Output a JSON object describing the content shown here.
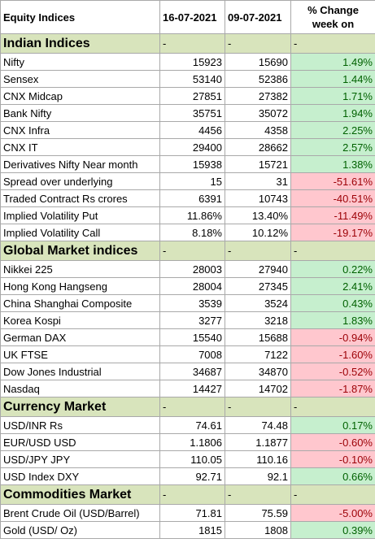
{
  "header": {
    "label": "Equity Indices",
    "date1": "16-07-2021",
    "date2": "09-07-2021",
    "change_line1": "% Change",
    "change_line2": "week on"
  },
  "colors": {
    "section_bg": "#d8e4bc",
    "positive_bg": "#c6efce",
    "positive_text": "#006100",
    "negative_bg": "#ffc7ce",
    "negative_text": "#9c0006"
  },
  "sections": [
    {
      "title": "Indian Indices",
      "d1": "-",
      "d2": "-",
      "d3": "-",
      "rows": [
        {
          "name": "Nifty",
          "v1": "15923",
          "v2": "15690",
          "chg": "1.49%",
          "sign": "pos"
        },
        {
          "name": "Sensex",
          "v1": "53140",
          "v2": "52386",
          "chg": "1.44%",
          "sign": "pos"
        },
        {
          "name": "CNX Midcap",
          "v1": "27851",
          "v2": "27382",
          "chg": "1.71%",
          "sign": "pos"
        },
        {
          "name": "Bank Nifty",
          "v1": "35751",
          "v2": "35072",
          "chg": "1.94%",
          "sign": "pos"
        },
        {
          "name": "CNX Infra",
          "v1": "4456",
          "v2": "4358",
          "chg": "2.25%",
          "sign": "pos"
        },
        {
          "name": "CNX IT",
          "v1": "29400",
          "v2": "28662",
          "chg": "2.57%",
          "sign": "pos"
        },
        {
          "name": "Derivatives Nifty Near month",
          "v1": "15938",
          "v2": "15721",
          "chg": "1.38%",
          "sign": "pos"
        },
        {
          "name": "Spread over underlying",
          "v1": "15",
          "v2": "31",
          "chg": "-51.61%",
          "sign": "neg"
        },
        {
          "name": "Traded Contract Rs crores",
          "v1": "6391",
          "v2": "10743",
          "chg": "-40.51%",
          "sign": "neg"
        },
        {
          "name": "Implied Volatility Put",
          "v1": "11.86%",
          "v2": "13.40%",
          "chg": "-11.49%",
          "sign": "neg"
        },
        {
          "name": "Implied Volatility Call",
          "v1": "8.18%",
          "v2": "10.12%",
          "chg": "-19.17%",
          "sign": "neg"
        }
      ]
    },
    {
      "title": "Global Market indices",
      "d1": "-",
      "d2": "-",
      "d3": "-",
      "rows": [
        {
          "name": "Nikkei 225",
          "v1": "28003",
          "v2": "27940",
          "chg": "0.22%",
          "sign": "pos"
        },
        {
          "name": "Hong Kong Hangseng",
          "v1": "28004",
          "v2": "27345",
          "chg": "2.41%",
          "sign": "pos"
        },
        {
          "name": "China Shanghai Composite",
          "v1": "3539",
          "v2": "3524",
          "chg": "0.43%",
          "sign": "pos"
        },
        {
          "name": "Korea Kospi",
          "v1": "3277",
          "v2": "3218",
          "chg": "1.83%",
          "sign": "pos"
        },
        {
          "name": "German DAX",
          "v1": "15540",
          "v2": "15688",
          "chg": "-0.94%",
          "sign": "neg"
        },
        {
          "name": "UK FTSE",
          "v1": "7008",
          "v2": "7122",
          "chg": "-1.60%",
          "sign": "neg"
        },
        {
          "name": "Dow Jones Industrial",
          "v1": "34687",
          "v2": "34870",
          "chg": "-0.52%",
          "sign": "neg"
        },
        {
          "name": "Nasdaq",
          "v1": "14427",
          "v2": "14702",
          "chg": "-1.87%",
          "sign": "neg"
        }
      ]
    },
    {
      "title": "Currency Market",
      "d1": "-",
      "d2": "-",
      "d3": "-",
      "rows": [
        {
          "name": "USD/INR Rs",
          "v1": "74.61",
          "v2": "74.48",
          "chg": "0.17%",
          "sign": "pos"
        },
        {
          "name": "EUR/USD USD",
          "v1": "1.1806",
          "v2": "1.1877",
          "chg": "-0.60%",
          "sign": "neg"
        },
        {
          "name": "USD/JPY JPY",
          "v1": "110.05",
          "v2": "110.16",
          "chg": "-0.10%",
          "sign": "neg"
        },
        {
          "name": "USD Index DXY",
          "v1": "92.71",
          "v2": "92.1",
          "chg": "0.66%",
          "sign": "pos"
        }
      ]
    },
    {
      "title": "Commodities Market",
      "d1": "-",
      "d2": "-",
      "d3": "-",
      "rows": [
        {
          "name": "Brent Crude Oil (USD/Barrel)",
          "v1": "71.81",
          "v2": "75.59",
          "chg": "-5.00%",
          "sign": "neg"
        },
        {
          "name": "Gold (USD/ Oz)",
          "v1": "1815",
          "v2": "1808",
          "chg": "0.39%",
          "sign": "pos"
        }
      ]
    }
  ]
}
